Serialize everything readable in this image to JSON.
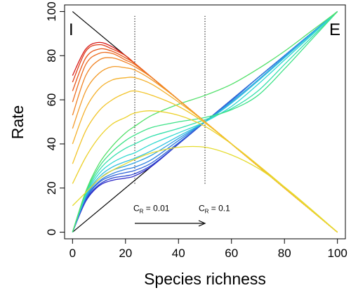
{
  "chart_data": {
    "type": "line",
    "title": "",
    "xlabel": "Species richness",
    "ylabel": "Rate",
    "xlim": [
      -3,
      103
    ],
    "ylim": [
      -3,
      103
    ],
    "xticks": [
      0,
      20,
      40,
      60,
      80,
      100
    ],
    "yticks": [
      0,
      20,
      40,
      60,
      80,
      100
    ],
    "grid": false,
    "corner_labels": {
      "immigration": "I",
      "extinction": "E"
    },
    "reference_lines": [
      {
        "name": "I",
        "x": [
          0,
          100
        ],
        "y": [
          100,
          0
        ]
      },
      {
        "name": "E",
        "x": [
          0,
          100
        ],
        "y": [
          0,
          100
        ]
      }
    ],
    "vertical_markers": [
      23.5,
      50
    ],
    "annotations": {
      "left": {
        "main": "C",
        "sub": "R",
        "rest": " = 0.01",
        "x": 23.5,
        "y": 9.5
      },
      "right": {
        "main": "C",
        "sub": "R",
        "rest": " = 0.1",
        "x": 50,
        "y": 9.5
      }
    },
    "arrow": {
      "x_from": 23.5,
      "x_to": 50,
      "y": 4
    },
    "immigration_curves": [
      {
        "color": "#d71a1a",
        "x": [
          0,
          5,
          10,
          15,
          20,
          23.5,
          30,
          40,
          50,
          60,
          70,
          80,
          90,
          100
        ],
        "y": [
          71,
          83,
          86,
          84,
          80,
          76.5,
          70,
          60,
          50,
          40,
          30,
          20,
          10,
          0
        ]
      },
      {
        "color": "#e03a14",
        "x": [
          0,
          5,
          10,
          15,
          20,
          23.5,
          30,
          40,
          50,
          60,
          70,
          80,
          90,
          100
        ],
        "y": [
          68,
          82,
          85,
          83,
          80,
          76.5,
          70,
          60,
          50,
          40,
          30,
          20,
          10,
          0
        ]
      },
      {
        "color": "#e8561a",
        "x": [
          0,
          5,
          10,
          15,
          20,
          23.5,
          30,
          40,
          50,
          60,
          70,
          80,
          90,
          100
        ],
        "y": [
          64,
          79,
          83,
          82,
          79,
          76.5,
          70,
          60,
          50,
          40,
          30,
          20,
          10,
          0
        ]
      },
      {
        "color": "#ed6c20",
        "x": [
          0,
          5,
          10,
          15,
          20,
          23.5,
          30,
          40,
          50,
          60,
          70,
          80,
          90,
          100
        ],
        "y": [
          59,
          76,
          81,
          81,
          78,
          76,
          70,
          60,
          50,
          40,
          30,
          20,
          10,
          0
        ]
      },
      {
        "color": "#f08224",
        "x": [
          0,
          5,
          10,
          15,
          20,
          23.5,
          30,
          40,
          50,
          60,
          70,
          80,
          90,
          100
        ],
        "y": [
          53,
          71,
          78,
          79,
          77,
          75,
          70,
          60,
          50,
          40,
          30,
          20,
          10,
          0
        ]
      },
      {
        "color": "#f39a28",
        "x": [
          0,
          5,
          10,
          15,
          20,
          23.5,
          30,
          40,
          50,
          60,
          70,
          80,
          90,
          100
        ],
        "y": [
          47,
          64,
          72,
          75,
          74.5,
          73.5,
          69,
          60,
          50,
          40,
          30,
          20,
          10,
          0
        ]
      },
      {
        "color": "#f4b02a",
        "x": [
          0,
          5,
          10,
          15,
          20,
          23.5,
          30,
          40,
          50,
          60,
          70,
          80,
          90,
          100
        ],
        "y": [
          40,
          56,
          65,
          69,
          70,
          70,
          67,
          59,
          50,
          40,
          30,
          20,
          10,
          0
        ]
      },
      {
        "color": "#f2c42a",
        "x": [
          0,
          5,
          10,
          15,
          20,
          23.5,
          30,
          40,
          50,
          60,
          70,
          80,
          90,
          100
        ],
        "y": [
          31,
          46,
          55,
          60,
          63,
          64,
          62,
          57,
          49.5,
          40,
          30,
          20,
          10,
          0
        ]
      },
      {
        "color": "#ecd12a",
        "x": [
          0,
          5,
          10,
          15,
          20,
          23.5,
          30,
          40,
          50,
          60,
          70,
          80,
          90,
          100
        ],
        "y": [
          22,
          34,
          43,
          49,
          52,
          54,
          55,
          53,
          48,
          40,
          30.5,
          20.5,
          10,
          0
        ]
      },
      {
        "color": "#e5dc30",
        "x": [
          0,
          5,
          10,
          15,
          20,
          23.5,
          30,
          40,
          50,
          60,
          70,
          80,
          90,
          100
        ],
        "y": [
          12,
          18,
          24,
          28,
          31,
          33,
          36,
          38.5,
          38.5,
          35,
          29,
          20.5,
          10.5,
          0
        ]
      }
    ],
    "extinction_curves": [
      {
        "color": "#2c27c6",
        "x": [
          0,
          5,
          10,
          15,
          20,
          23.5,
          30,
          40,
          50,
          60,
          70,
          80,
          90,
          100
        ],
        "y": [
          0,
          14,
          21,
          23.5,
          24.5,
          25.5,
          30,
          40,
          50,
          60,
          70,
          80,
          90,
          100
        ]
      },
      {
        "color": "#2b45d0",
        "x": [
          0,
          5,
          10,
          15,
          20,
          23.5,
          30,
          40,
          50,
          60,
          70,
          80,
          90,
          100
        ],
        "y": [
          0,
          14.5,
          21.5,
          24.5,
          25.5,
          26.5,
          30.5,
          40,
          50,
          60,
          70,
          80,
          90,
          100
        ]
      },
      {
        "color": "#2f62d8",
        "x": [
          0,
          5,
          10,
          15,
          20,
          23.5,
          30,
          40,
          50,
          60,
          70,
          80,
          90,
          100
        ],
        "y": [
          0,
          15,
          22.5,
          25.5,
          27,
          28,
          31.5,
          40.5,
          50,
          60,
          70,
          80,
          90,
          100
        ]
      },
      {
        "color": "#2f80df",
        "x": [
          0,
          5,
          10,
          15,
          20,
          23.5,
          30,
          40,
          50,
          60,
          70,
          80,
          90,
          100
        ],
        "y": [
          0,
          15.5,
          23,
          26.5,
          28.5,
          29.5,
          33,
          41.5,
          50,
          59.5,
          70,
          80,
          90,
          100
        ]
      },
      {
        "color": "#2fa0e2",
        "x": [
          0,
          5,
          10,
          15,
          20,
          23.5,
          30,
          40,
          50,
          60,
          70,
          80,
          90,
          100
        ],
        "y": [
          0,
          16,
          24,
          28,
          30,
          31.5,
          35,
          42.5,
          50,
          59,
          69,
          79.5,
          90,
          100
        ]
      },
      {
        "color": "#2fc0e0",
        "x": [
          0,
          5,
          10,
          15,
          20,
          23.5,
          30,
          40,
          50,
          60,
          70,
          80,
          90,
          100
        ],
        "y": [
          0,
          16.5,
          25,
          29.5,
          32,
          33.5,
          37,
          43.5,
          50,
          58.5,
          68.5,
          79,
          89.5,
          100
        ]
      },
      {
        "color": "#2fd8d0",
        "x": [
          0,
          5,
          10,
          15,
          20,
          23.5,
          30,
          40,
          50,
          60,
          70,
          80,
          90,
          100
        ],
        "y": [
          0,
          17,
          26.5,
          31.5,
          34.5,
          36,
          40,
          45,
          50,
          57,
          67,
          78,
          89,
          100
        ]
      },
      {
        "color": "#34e0ad",
        "x": [
          0,
          5,
          10,
          15,
          20,
          23.5,
          30,
          40,
          50,
          60,
          70,
          80,
          90,
          100
        ],
        "y": [
          0,
          17.5,
          28,
          34,
          38,
          40,
          43.5,
          47,
          51,
          56,
          64,
          76,
          88,
          100
        ]
      },
      {
        "color": "#3ee288",
        "x": [
          0,
          5,
          10,
          15,
          20,
          23.5,
          30,
          40,
          50,
          60,
          70,
          80,
          90,
          100
        ],
        "y": [
          0,
          18,
          29.5,
          36.5,
          41.5,
          44,
          47.5,
          50,
          52,
          55.5,
          62,
          74,
          87,
          100
        ]
      },
      {
        "color": "#52e06a",
        "x": [
          0,
          5,
          10,
          15,
          20,
          23.5,
          30,
          40,
          50,
          60,
          70,
          80,
          90,
          100
        ],
        "y": [
          0,
          18.5,
          31,
          39,
          45,
          48,
          53,
          58,
          62,
          67,
          74,
          82,
          91,
          100
        ]
      }
    ]
  }
}
